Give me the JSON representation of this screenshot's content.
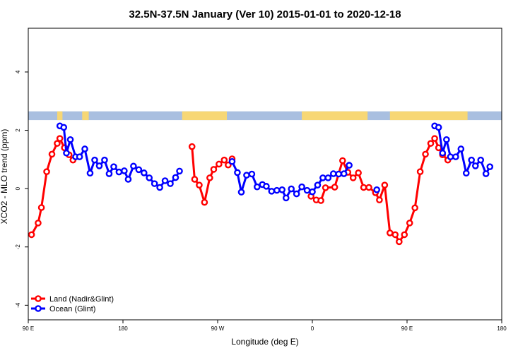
{
  "chart_data": {
    "type": "line",
    "title": "32.5N-37.5N January (Ver 10)   2015-01-01 to 2020-12-18",
    "xlabel": "Longitude (deg E)",
    "ylabel": "XCO2 - MLO trend (ppm)",
    "xlim": [
      90,
      450
    ],
    "ylim": [
      -4.5,
      5.5
    ],
    "x_ticks": [
      {
        "value": 90,
        "label": "90 E"
      },
      {
        "value": 162,
        "label": "180"
      },
      {
        "value": 234,
        "label": "90 W"
      },
      {
        "value": 306,
        "label": "0"
      },
      {
        "value": 378,
        "label": "90 E"
      },
      {
        "value": 450,
        "label": "180"
      }
    ],
    "y_ticks": [
      {
        "value": -4,
        "label": "-4"
      },
      {
        "value": -2,
        "label": "-2"
      },
      {
        "value": 0,
        "label": "0"
      },
      {
        "value": 2,
        "label": "2"
      },
      {
        "value": 4,
        "label": "4"
      }
    ],
    "grid": false,
    "legend_position": "bottom-left",
    "land_sea_strip": {
      "y_range": [
        2.35,
        2.65
      ],
      "ocean_color": "#a9bfe0",
      "land_color": "#f7d775",
      "land_segments": [
        [
          112,
          116
        ],
        [
          131,
          136
        ],
        [
          207,
          241
        ],
        [
          298,
          348
        ],
        [
          365,
          424
        ]
      ]
    },
    "series": [
      {
        "name": "Land (Nadir&Glint)",
        "color": "#ff0000",
        "segments": [
          [
            [
              92.5,
              -1.58
            ],
            [
              97.5,
              -1.18
            ],
            [
              100,
              -0.65
            ],
            [
              104,
              0.58
            ],
            [
              108,
              1.18
            ],
            [
              112,
              1.55
            ],
            [
              114,
              1.72
            ],
            [
              117.5,
              1.4
            ],
            [
              121,
              1.16
            ],
            [
              124,
              0.98
            ]
          ],
          [
            [
              214.5,
              1.44
            ],
            [
              216.5,
              0.32
            ],
            [
              220,
              0.12
            ],
            [
              224,
              -0.47
            ],
            [
              228,
              0.37
            ],
            [
              231,
              0.66
            ],
            [
              235,
              0.84
            ],
            [
              239,
              0.98
            ],
            [
              242,
              0.81
            ],
            [
              245,
              1.02
            ]
          ],
          [
            [
              305,
              -0.26
            ],
            [
              309,
              -0.39
            ],
            [
              312.5,
              -0.41
            ],
            [
              316,
              0.03
            ],
            [
              323,
              0.05
            ],
            [
              329,
              0.96
            ],
            [
              333,
              0.56
            ],
            [
              337,
              0.37
            ],
            [
              341,
              0.54
            ],
            [
              345,
              0.04
            ],
            [
              349,
              0.04
            ],
            [
              354,
              -0.14
            ],
            [
              357,
              -0.39
            ],
            [
              361,
              0.12
            ],
            [
              365,
              -1.52
            ],
            [
              369,
              -1.58
            ],
            [
              372,
              -1.82
            ],
            [
              376,
              -1.58
            ],
            [
              380,
              -1.18
            ],
            [
              384,
              -0.66
            ],
            [
              388,
              0.58
            ],
            [
              392,
              1.18
            ],
            [
              396,
              1.55
            ],
            [
              399,
              1.72
            ],
            [
              402,
              1.4
            ],
            [
              405,
              1.16
            ],
            [
              409,
              0.98
            ]
          ]
        ]
      },
      {
        "name": "Ocean (Glint)",
        "color": "#0000ff",
        "segments": [
          [
            [
              114,
              2.15
            ],
            [
              117,
              2.1
            ],
            [
              119,
              1.22
            ],
            [
              122,
              1.68
            ],
            [
              126,
              1.09
            ],
            [
              129,
              1.09
            ],
            [
              133,
              1.36
            ],
            [
              137,
              0.53
            ],
            [
              140.5,
              0.98
            ],
            [
              144,
              0.78
            ],
            [
              148,
              0.98
            ],
            [
              151.5,
              0.51
            ],
            [
              155,
              0.75
            ],
            [
              159,
              0.57
            ],
            [
              163,
              0.61
            ],
            [
              166,
              0.32
            ],
            [
              170,
              0.77
            ],
            [
              174,
              0.65
            ],
            [
              178,
              0.54
            ],
            [
              182,
              0.37
            ],
            [
              186,
              0.17
            ],
            [
              190,
              0.04
            ],
            [
              194,
              0.27
            ],
            [
              198,
              0.17
            ],
            [
              202,
              0.38
            ],
            [
              205,
              0.6
            ]
          ],
          [
            [
              245,
              0.93
            ],
            [
              249,
              0.55
            ],
            [
              252,
              -0.12
            ],
            [
              256,
              0.46
            ],
            [
              260,
              0.5
            ],
            [
              264,
              0.06
            ],
            [
              268,
              0.14
            ],
            [
              271,
              0.08
            ],
            [
              275,
              -0.09
            ],
            [
              279,
              -0.06
            ],
            [
              283,
              -0.04
            ],
            [
              286,
              -0.32
            ],
            [
              290,
              -0.01
            ],
            [
              294,
              -0.18
            ],
            [
              298,
              0.06
            ],
            [
              302,
              -0.06
            ],
            [
              306,
              -0.11
            ],
            [
              310,
              0.12
            ],
            [
              314,
              0.37
            ],
            [
              318,
              0.37
            ],
            [
              322,
              0.51
            ],
            [
              326,
              0.5
            ],
            [
              330,
              0.51
            ],
            [
              334,
              0.8
            ]
          ],
          [
            [
              355,
              -0.04
            ]
          ],
          [
            [
              399,
              2.15
            ],
            [
              402,
              2.1
            ],
            [
              405,
              1.22
            ],
            [
              408,
              1.68
            ],
            [
              411,
              1.09
            ],
            [
              415,
              1.09
            ],
            [
              419,
              1.36
            ],
            [
              423,
              0.53
            ],
            [
              427,
              0.98
            ],
            [
              430,
              0.78
            ],
            [
              434,
              0.98
            ],
            [
              438,
              0.51
            ],
            [
              441,
              0.75
            ]
          ]
        ]
      }
    ]
  }
}
